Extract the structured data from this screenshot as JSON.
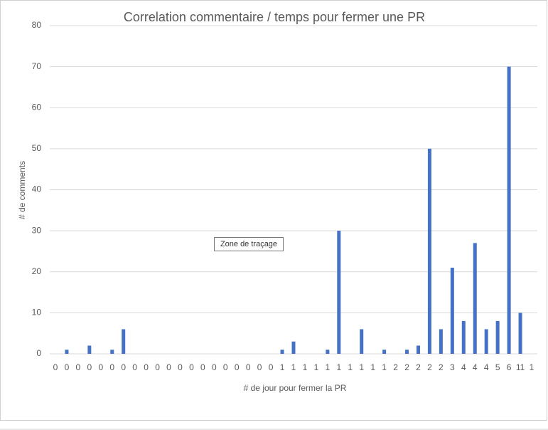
{
  "chart_data": {
    "type": "bar",
    "title": "Correlation commentaire / temps pour fermer une PR",
    "x_label": "# de jour pour fermer la PR",
    "y_label": "# de comments",
    "tooltip": "Zone de traçage",
    "categories": [
      0,
      0,
      0,
      0,
      0,
      0,
      0,
      0,
      0,
      0,
      0,
      0,
      0,
      0,
      0,
      0,
      0,
      0,
      0,
      0,
      1,
      1,
      1,
      1,
      1,
      1,
      1,
      1,
      1,
      1,
      2,
      2,
      2,
      2,
      2,
      3,
      4,
      4,
      4,
      5,
      6,
      11,
      1
    ],
    "values": [
      0,
      1,
      0,
      2,
      0,
      1,
      6,
      0,
      0,
      0,
      0,
      0,
      0,
      0,
      0,
      0,
      0,
      0,
      0,
      0,
      1,
      3,
      0,
      0,
      1,
      30,
      0,
      6,
      0,
      1,
      0,
      1,
      2,
      50,
      6,
      21,
      8,
      27,
      6,
      8,
      70,
      10,
      0
    ],
    "color": "#4472c4",
    "ylim": [
      0,
      80
    ],
    "yticks": [
      0,
      10,
      20,
      30,
      40,
      50,
      60,
      70,
      80
    ],
    "grid": true
  }
}
